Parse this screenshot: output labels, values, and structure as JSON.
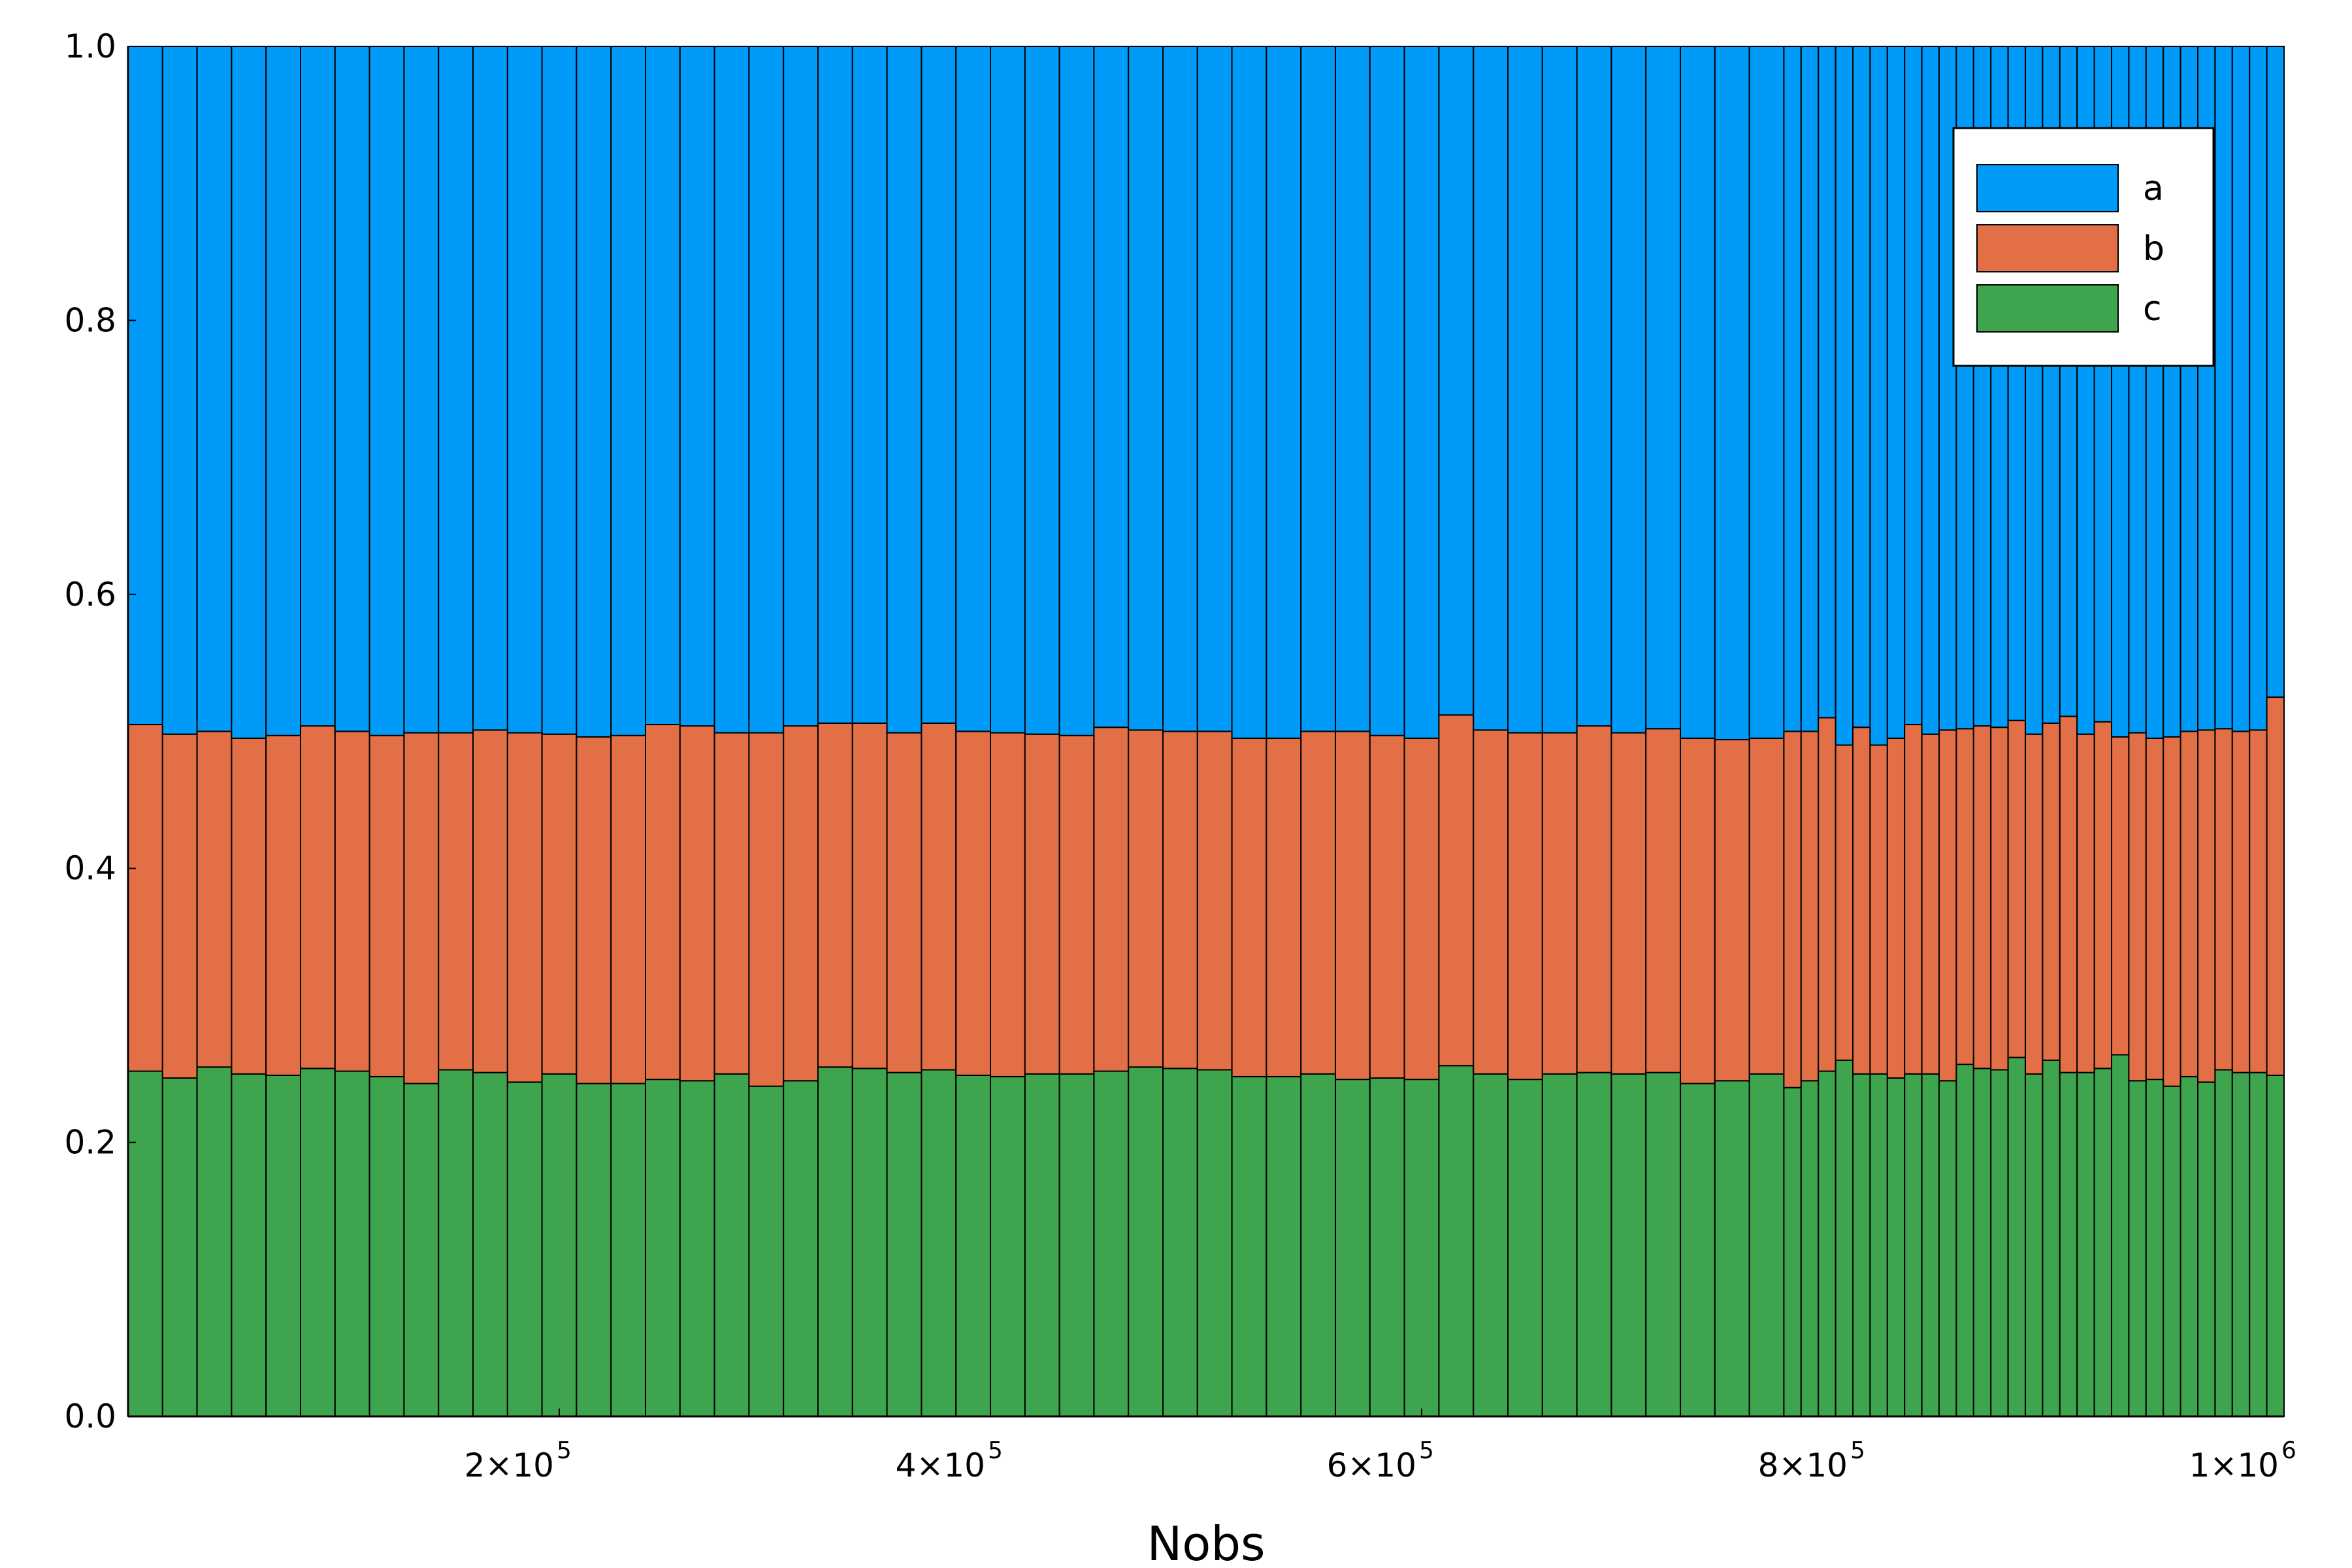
{
  "chart_data": {
    "type": "bar",
    "stacked": true,
    "xlabel": "Nobs",
    "ylabel": "",
    "xlim": [
      0,
      1000000
    ],
    "ylim": [
      0,
      1
    ],
    "grid": false,
    "legend_position": "top-right",
    "x_ticks": [
      {
        "value": 200000,
        "mantissa": "2⨯10",
        "exp": "5"
      },
      {
        "value": 400000,
        "mantissa": "4⨯10",
        "exp": "5"
      },
      {
        "value": 600000,
        "mantissa": "6⨯10",
        "exp": "5"
      },
      {
        "value": 800000,
        "mantissa": "8⨯10",
        "exp": "5"
      },
      {
        "value": 1000000,
        "mantissa": "1⨯10",
        "exp": "6"
      }
    ],
    "y_ticks": [
      "0.0",
      "0.2",
      "0.4",
      "0.6",
      "0.8",
      "1.0"
    ],
    "x": [
      0,
      16000,
      32000,
      48000,
      64000,
      80000,
      96000,
      112000,
      128000,
      144000,
      160000,
      176000,
      192000,
      208000,
      224000,
      240000,
      256000,
      272000,
      288000,
      304000,
      320000,
      336000,
      352000,
      368000,
      384000,
      400000,
      416000,
      432000,
      448000,
      464000,
      480000,
      496000,
      512000,
      528000,
      544000,
      560000,
      576000,
      592000,
      608000,
      624000,
      640000,
      656000,
      672000,
      688000,
      704000,
      720000,
      736000,
      752000,
      768000,
      776000,
      784000,
      792000,
      800000,
      808000,
      816000,
      824000,
      832000,
      840000,
      848000,
      856000,
      864000,
      872000,
      880000,
      888000,
      896000,
      904000,
      912000,
      920000,
      928000,
      936000,
      944000,
      952000,
      960000,
      968000,
      976000,
      984000,
      992000,
      1000000
    ],
    "series": [
      {
        "name": "a",
        "color": "#009af9",
        "values": [
          0.495,
          0.502,
          0.5,
          0.505,
          0.503,
          0.496,
          0.5,
          0.503,
          0.501,
          0.501,
          0.499,
          0.501,
          0.502,
          0.504,
          0.503,
          0.495,
          0.496,
          0.501,
          0.501,
          0.496,
          0.494,
          0.494,
          0.501,
          0.494,
          0.5,
          0.501,
          0.502,
          0.503,
          0.497,
          0.499,
          0.5,
          0.5,
          0.505,
          0.505,
          0.5,
          0.5,
          0.503,
          0.505,
          0.488,
          0.499,
          0.501,
          0.501,
          0.496,
          0.501,
          0.498,
          0.505,
          0.506,
          0.505,
          0.5,
          0.5,
          0.49,
          0.51,
          0.497,
          0.51,
          0.505,
          0.495,
          0.502,
          0.499,
          0.498,
          0.496,
          0.497,
          0.492,
          0.502,
          0.494,
          0.489,
          0.502,
          0.493,
          0.504,
          0.501,
          0.505,
          0.504,
          0.5,
          0.499,
          0.498,
          0.5,
          0.499,
          0.475,
          0.475
        ]
      },
      {
        "name": "b",
        "color": "#e26f46",
        "values": [
          0.253,
          0.251,
          0.245,
          0.245,
          0.248,
          0.25,
          0.248,
          0.249,
          0.256,
          0.246,
          0.25,
          0.255,
          0.248,
          0.253,
          0.254,
          0.259,
          0.259,
          0.249,
          0.258,
          0.259,
          0.251,
          0.252,
          0.248,
          0.253,
          0.251,
          0.251,
          0.248,
          0.247,
          0.251,
          0.246,
          0.246,
          0.247,
          0.247,
          0.247,
          0.25,
          0.254,
          0.25,
          0.249,
          0.256,
          0.251,
          0.253,
          0.249,
          0.253,
          0.249,
          0.251,
          0.252,
          0.249,
          0.245,
          0.26,
          0.255,
          0.258,
          0.23,
          0.253,
          0.24,
          0.248,
          0.255,
          0.248,
          0.256,
          0.245,
          0.25,
          0.25,
          0.246,
          0.248,
          0.246,
          0.26,
          0.247,
          0.253,
          0.232,
          0.254,
          0.249,
          0.255,
          0.252,
          0.257,
          0.249,
          0.249,
          0.25,
          0.276,
          0.276
        ]
      },
      {
        "name": "c",
        "color": "#3ea44e",
        "values": [
          0.252,
          0.247,
          0.255,
          0.25,
          0.249,
          0.254,
          0.252,
          0.248,
          0.243,
          0.253,
          0.251,
          0.244,
          0.25,
          0.243,
          0.243,
          0.246,
          0.245,
          0.25,
          0.241,
          0.245,
          0.255,
          0.254,
          0.251,
          0.253,
          0.249,
          0.248,
          0.25,
          0.25,
          0.252,
          0.255,
          0.254,
          0.253,
          0.248,
          0.248,
          0.25,
          0.246,
          0.247,
          0.246,
          0.256,
          0.25,
          0.246,
          0.25,
          0.251,
          0.25,
          0.251,
          0.243,
          0.245,
          0.25,
          0.24,
          0.245,
          0.252,
          0.26,
          0.25,
          0.25,
          0.247,
          0.25,
          0.25,
          0.245,
          0.257,
          0.254,
          0.253,
          0.262,
          0.25,
          0.26,
          0.251,
          0.251,
          0.254,
          0.264,
          0.245,
          0.246,
          0.241,
          0.248,
          0.244,
          0.253,
          0.251,
          0.251,
          0.249,
          0.249
        ]
      }
    ]
  }
}
